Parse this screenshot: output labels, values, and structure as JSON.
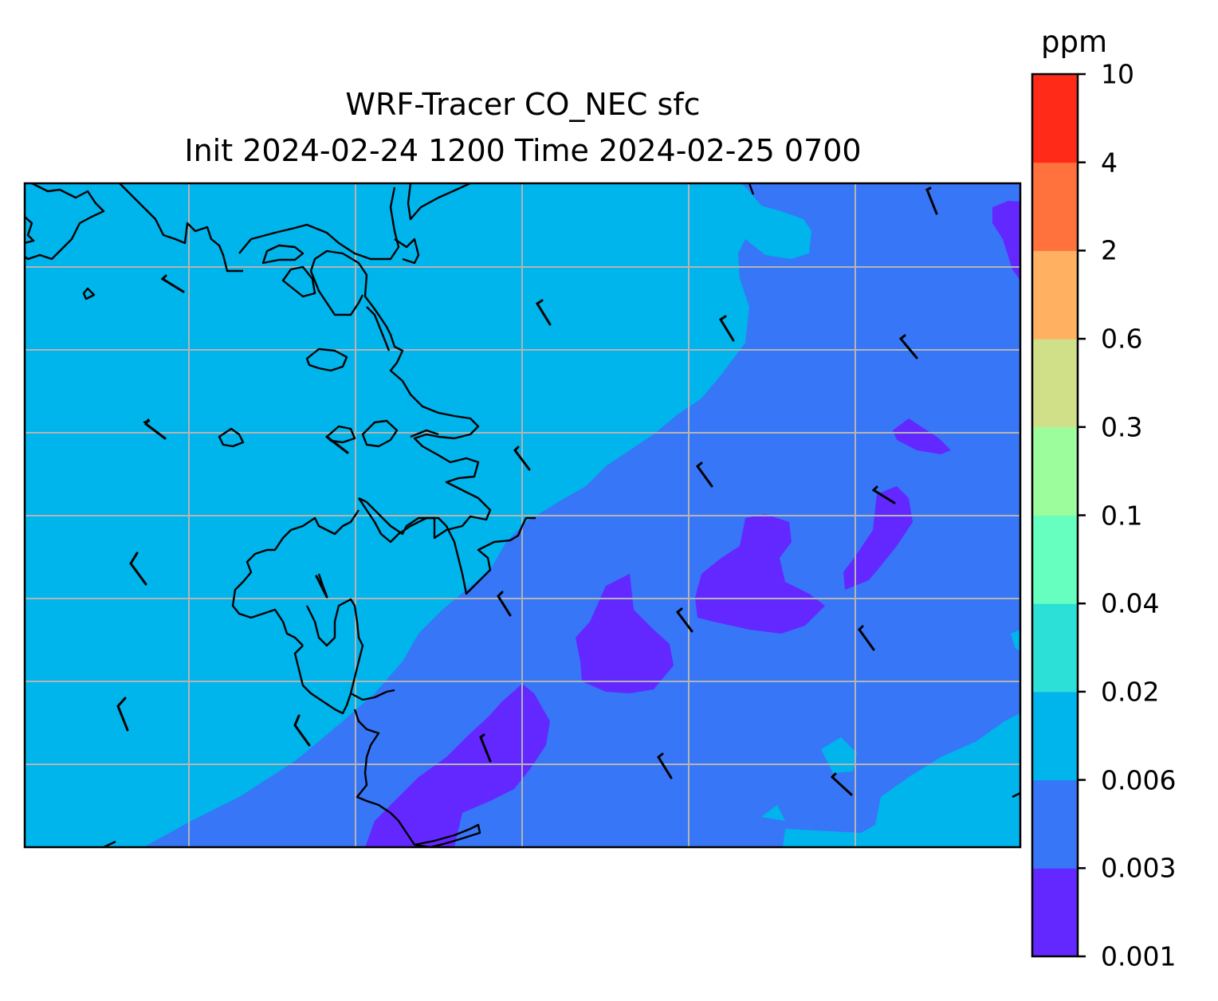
{
  "title": {
    "line1": "WRF-Tracer CO_NEC sfc",
    "line2": "Init 2024-02-24 1200 Time 2024-02-25 0700"
  },
  "colorbar": {
    "unit": "ppm",
    "levels": [
      "0.001",
      "0.003",
      "0.006",
      "0.02",
      "0.04",
      "0.1",
      "0.3",
      "0.6",
      "2",
      "4",
      "10"
    ],
    "colors": [
      "#6328ff",
      "#3776f7",
      "#00b4ec",
      "#2ce0d8",
      "#66ffc0",
      "#9cfd9c",
      "#d0e088",
      "#ffb060",
      "#ff723d",
      "#ff2a18"
    ]
  },
  "map": {
    "background_color": "#00b4ec",
    "gridlines": true,
    "gridline_color": "#b4b4b4",
    "coastline_color": "#000000"
  }
}
